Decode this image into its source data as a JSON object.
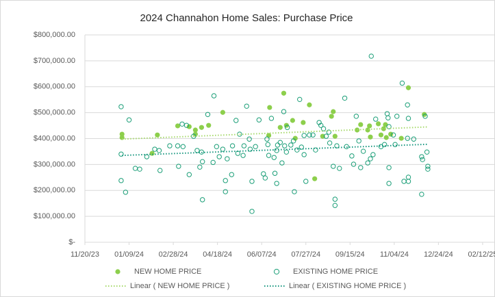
{
  "chart_data": {
    "type": "scatter",
    "title": "2024 Channahon Home Sales: Purchase Price",
    "xlim": [
      45250,
      45714
    ],
    "xticks": [
      {
        "value": 45250,
        "label": "11/20/23"
      },
      {
        "value": 45300,
        "label": "01/09/24"
      },
      {
        "value": 45350,
        "label": "02/28/24"
      },
      {
        "value": 45400,
        "label": "04/18/24"
      },
      {
        "value": 45450,
        "label": "06/07/24"
      },
      {
        "value": 45500,
        "label": "07/27/24"
      },
      {
        "value": 45550,
        "label": "09/15/24"
      },
      {
        "value": 45600,
        "label": "11/04/24"
      },
      {
        "value": 45650,
        "label": "12/24/24"
      },
      {
        "value": 45700,
        "label": "02/12/25"
      }
    ],
    "ylim": [
      0,
      800000
    ],
    "yticks": [
      {
        "value": 0,
        "label": "$-"
      },
      {
        "value": 100000,
        "label": "$100,000.00"
      },
      {
        "value": 200000,
        "label": "$200,000.00"
      },
      {
        "value": 300000,
        "label": "$300,000.00"
      },
      {
        "value": 400000,
        "label": "$400,000.00"
      },
      {
        "value": 500000,
        "label": "$500,000.00"
      },
      {
        "value": 600000,
        "label": "$600,000.00"
      },
      {
        "value": 700000,
        "label": "$700,000.00"
      },
      {
        "value": 800000,
        "label": "$800,000.00"
      }
    ],
    "grid": true,
    "legend": "bottom",
    "series": [
      {
        "name": "NEW HOME PRICE",
        "color": "#8dcf4c",
        "marker": "filled",
        "x": [
          45292,
          45292,
          45332,
          45326,
          45355,
          45368,
          45375,
          45375,
          45382,
          45390,
          45406,
          45458,
          45459,
          45471,
          45475,
          45478,
          45485,
          45488,
          45497,
          45504,
          45510,
          45519,
          45529,
          45531,
          45533,
          45558,
          45562,
          45572,
          45573,
          45582,
          45585,
          45588,
          45591,
          45596,
          45608,
          45616,
          45634,
          45570,
          45590
        ],
        "values": [
          417000,
          404000,
          414000,
          343000,
          449000,
          446000,
          433000,
          417000,
          443000,
          451000,
          501000,
          412000,
          520000,
          443000,
          575000,
          451000,
          470000,
          401000,
          462000,
          530000,
          245000,
          409000,
          486000,
          504000,
          409000,
          433000,
          454000,
          449000,
          406000,
          457000,
          414000,
          438000,
          404000,
          417000,
          401000,
          596000,
          493000,
          433000,
          454000
        ]
      },
      {
        "name": "EXISTING HOME PRICE",
        "color": "#1a9e77",
        "marker": "hollow",
        "x": [
          45291,
          45291,
          45291,
          45296,
          45300,
          45307,
          45312,
          45320,
          45329,
          45334,
          45335,
          45346,
          45355,
          45356,
          45360,
          45361,
          45365,
          45368,
          45373,
          45377,
          45380,
          45382,
          45383,
          45383,
          45389,
          45395,
          45396,
          45399,
          45402,
          45406,
          45409,
          45409,
          45411,
          45416,
          45417,
          45421,
          45423,
          45425,
          45429,
          45430,
          45433,
          45436,
          45437,
          45439,
          45439,
          45443,
          45447,
          45452,
          45454,
          45456,
          45457,
          45458,
          45461,
          45464,
          45465,
          45467,
          45467,
          45468,
          45471,
          45473,
          45475,
          45476,
          45478,
          45479,
          45483,
          45486,
          45487,
          45490,
          45493,
          45495,
          45498,
          45498,
          45500,
          45504,
          45508,
          45511,
          45515,
          45517,
          45520,
          45523,
          45526,
          45527,
          45531,
          45533,
          45533,
          45535,
          45538,
          45544,
          45546,
          45552,
          45554,
          45557,
          45560,
          45562,
          45565,
          45570,
          45574,
          45573,
          45576,
          45579,
          45585,
          45589,
          45592,
          45593,
          45594,
          45594,
          45594,
          45599,
          45601,
          45603,
          45609,
          45611,
          45615,
          45615,
          45616,
          45616,
          45616,
          45622,
          45631,
          45631,
          45632,
          45635,
          45637,
          45638,
          45638
        ],
        "values": [
          523000,
          340000,
          238000,
          193000,
          472000,
          285000,
          282000,
          330000,
          359000,
          354000,
          277000,
          372000,
          372000,
          293000,
          456000,
          369000,
          451000,
          261000,
          409000,
          354000,
          290000,
          348000,
          164000,
          311000,
          493000,
          308000,
          565000,
          369000,
          330000,
          359000,
          195000,
          238000,
          322000,
          261000,
          372000,
          470000,
          343000,
          417000,
          335000,
          372000,
          525000,
          398000,
          359000,
          235000,
          119000,
          369000,
          472000,
          264000,
          248000,
          398000,
          377000,
          335000,
          478000,
          327000,
          266000,
          354000,
          227000,
          375000,
          385000,
          306000,
          504000,
          372000,
          348000,
          443000,
          375000,
          391000,
          195000,
          356000,
          551000,
          367000,
          412000,
          338000,
          235000,
          414000,
          414000,
          356000,
          462000,
          451000,
          438000,
          409000,
          425000,
          383000,
          293000,
          166000,
          142000,
          372000,
          285000,
          556000,
          369000,
          333000,
          301000,
          486000,
          391000,
          288000,
          351000,
          306000,
          718000,
          322000,
          338000,
          475000,
          369000,
          377000,
          496000,
          480000,
          446000,
          288000,
          227000,
          414000,
          377000,
          486000,
          614000,
          235000,
          401000,
          530000,
          478000,
          235000,
          251000,
          398000,
          330000,
          185000,
          319000,
          486000,
          348000,
          293000,
          282000
        ]
      },
      {
        "name": "Linear ( NEW HOME PRICE )",
        "color": "#a6d96a",
        "marker": "dotted-line",
        "x": [
          45292,
          45638
        ],
        "values": [
          398000,
          445000
        ]
      },
      {
        "name": "Linear ( EXISTING HOME PRICE )",
        "color": "#13957d",
        "marker": "dotted-line",
        "x": [
          45292,
          45638
        ],
        "values": [
          335000,
          378000
        ]
      }
    ]
  }
}
